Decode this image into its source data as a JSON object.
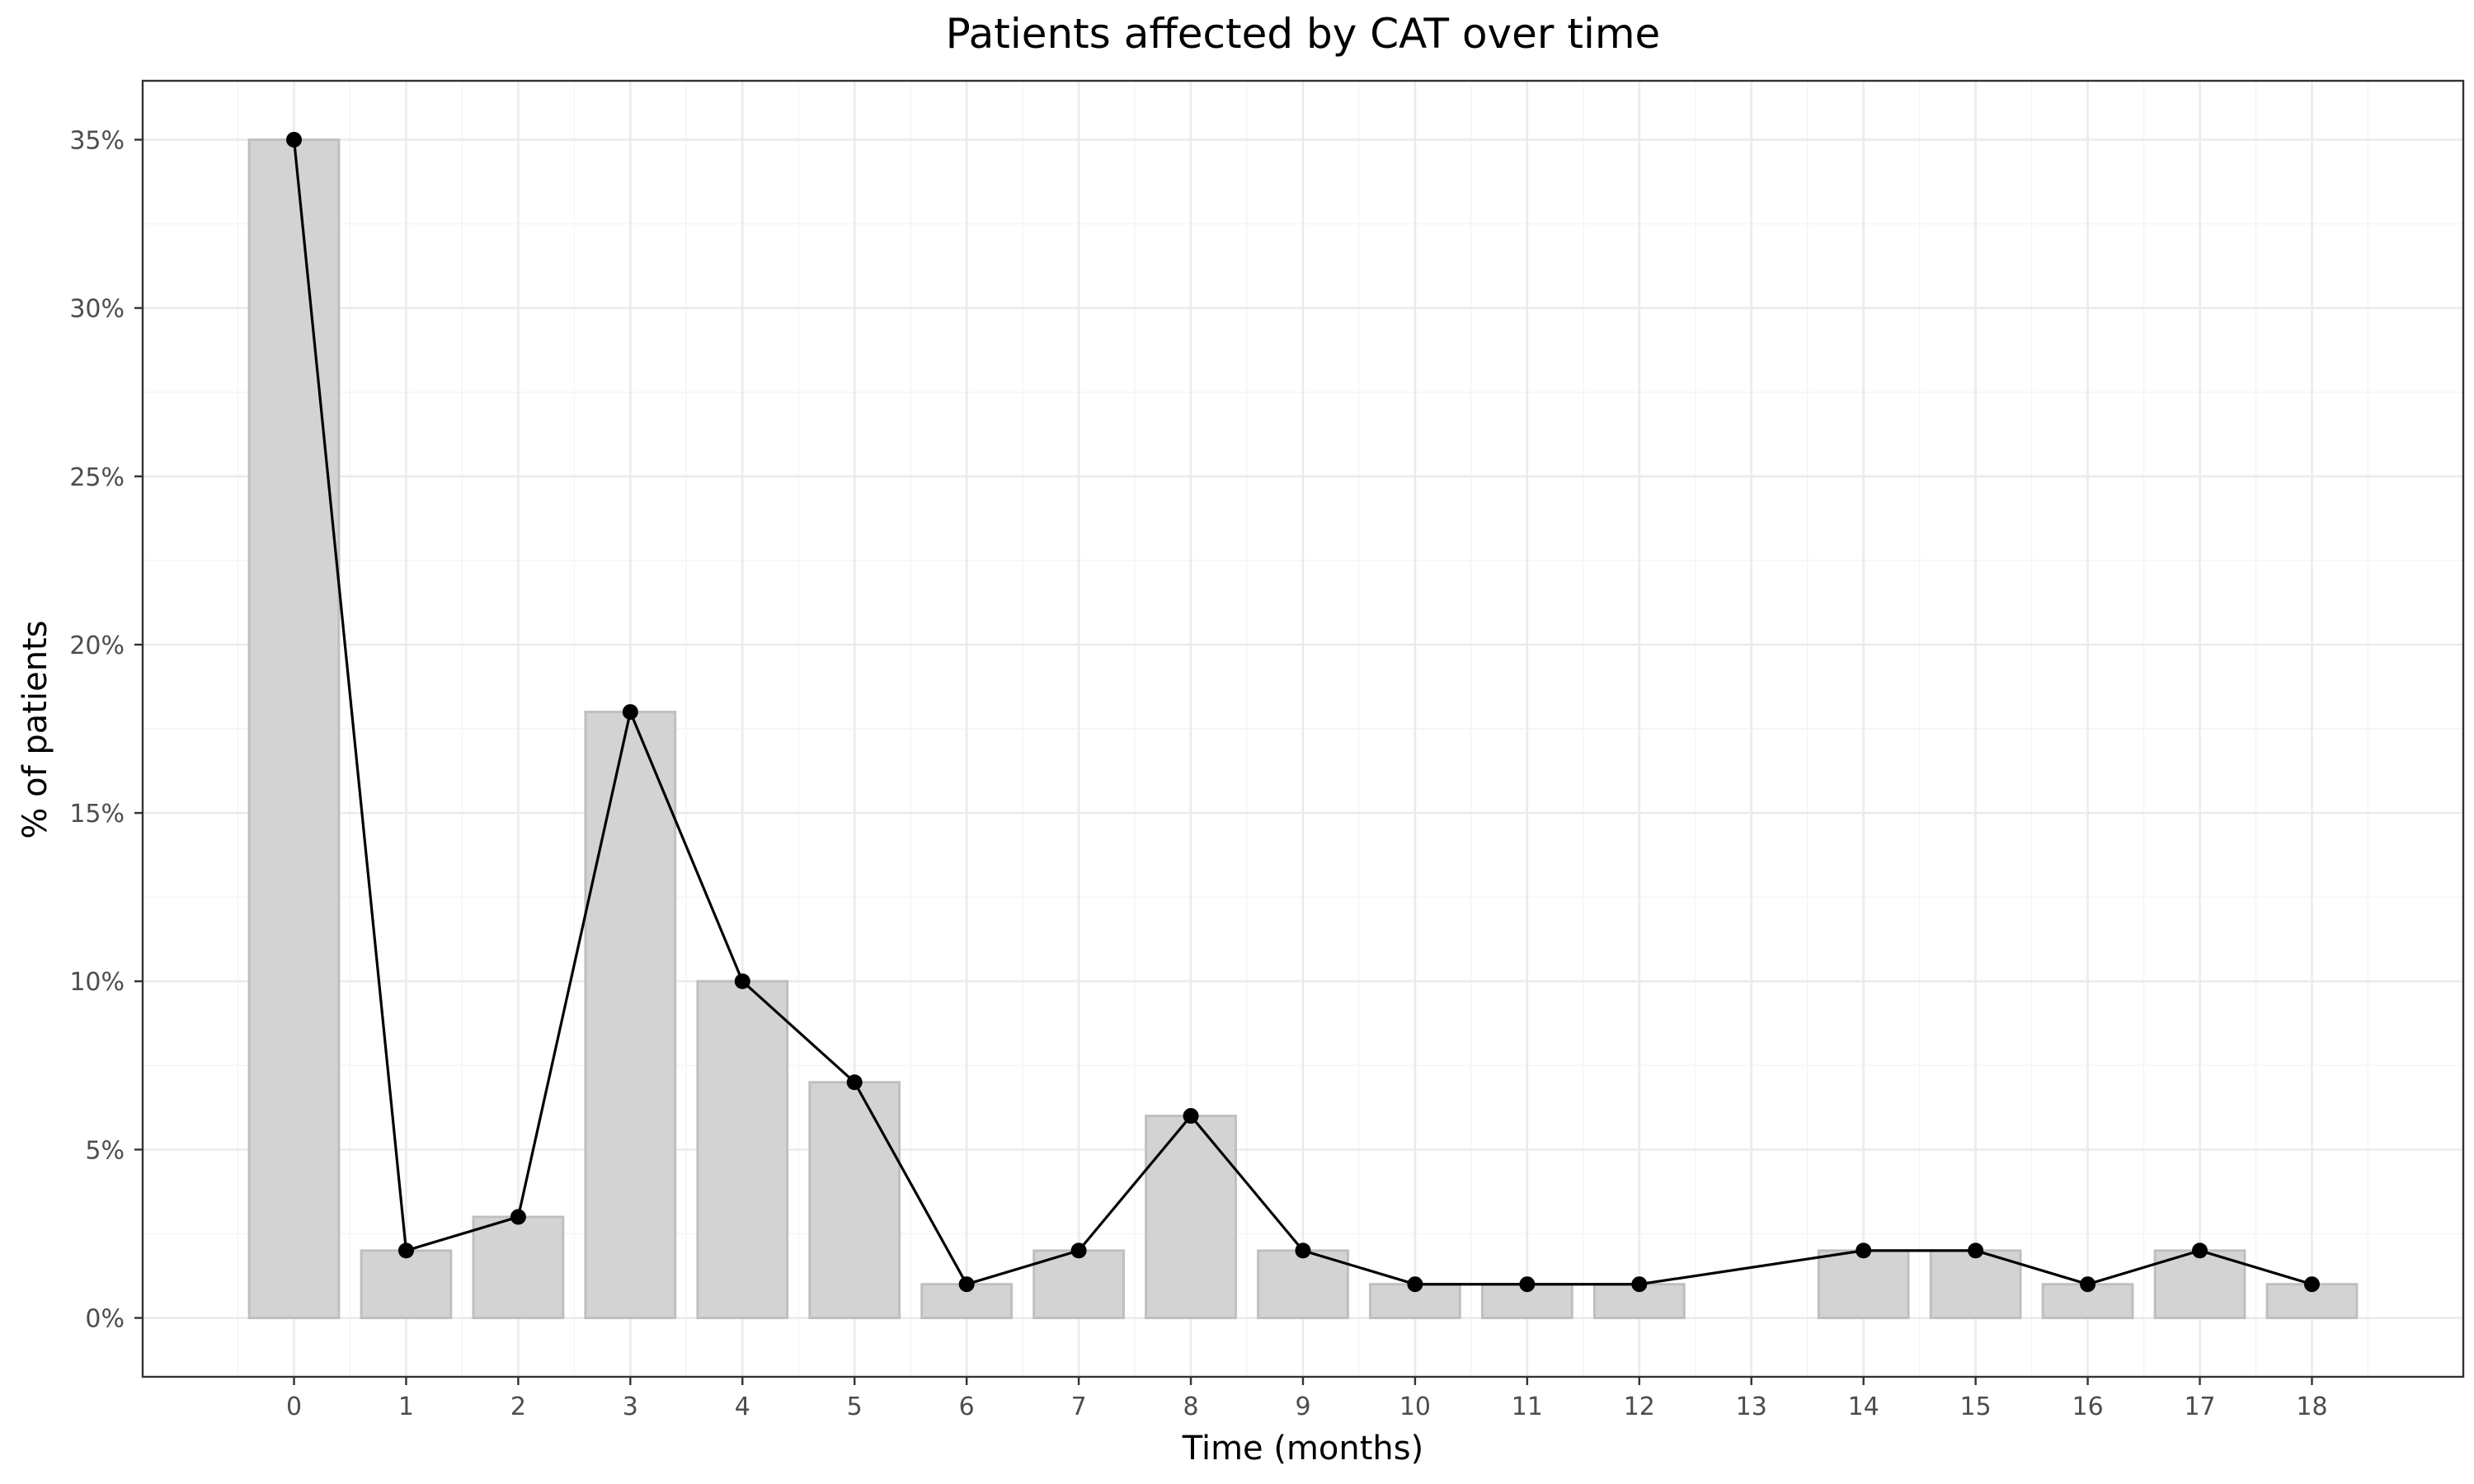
{
  "chart_data": {
    "type": "bar",
    "title": "Patients affected by CAT over time",
    "xlabel": "Time (months)",
    "ylabel": "% of patients",
    "x_ticks": [
      0,
      1,
      2,
      3,
      4,
      5,
      6,
      7,
      8,
      9,
      10,
      11,
      12,
      13,
      14,
      15,
      16,
      17,
      18
    ],
    "y_ticks": [
      0,
      5,
      10,
      15,
      20,
      25,
      30,
      35
    ],
    "y_tick_labels": [
      "0%",
      "5%",
      "10%",
      "15%",
      "20%",
      "25%",
      "30%",
      "35%"
    ],
    "xlim": [
      -1.35,
      19.35
    ],
    "ylim": [
      -1.75,
      36.75
    ],
    "grid": true,
    "bar_color": "#d3d3d3",
    "bar_border_color": "#bfbfbf",
    "line_color": "#000000",
    "points": [
      {
        "x": 0,
        "y": 35
      },
      {
        "x": 1,
        "y": 2
      },
      {
        "x": 2,
        "y": 3
      },
      {
        "x": 3,
        "y": 18
      },
      {
        "x": 4,
        "y": 10
      },
      {
        "x": 5,
        "y": 7
      },
      {
        "x": 6,
        "y": 1
      },
      {
        "x": 7,
        "y": 2
      },
      {
        "x": 8,
        "y": 6
      },
      {
        "x": 9,
        "y": 2
      },
      {
        "x": 10,
        "y": 1
      },
      {
        "x": 11,
        "y": 1
      },
      {
        "x": 12,
        "y": 1
      },
      {
        "x": 14,
        "y": 2
      },
      {
        "x": 15,
        "y": 2
      },
      {
        "x": 16,
        "y": 1
      },
      {
        "x": 17,
        "y": 2
      },
      {
        "x": 18,
        "y": 1
      }
    ]
  }
}
